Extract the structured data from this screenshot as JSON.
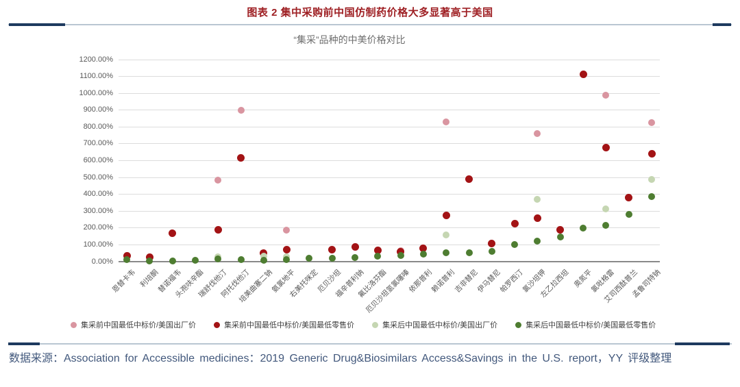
{
  "header": {
    "title": "图表 2 集中采购前中国仿制药价格大多显著高于美国"
  },
  "source": {
    "text": "数据来源：Association for Accessible medicines：2019 Generic Drug&Biosimilars Access&Savings in the U.S. report，YY 评级整理"
  },
  "chart_data": {
    "type": "scatter",
    "title": "“集采”品种的中美价格对比",
    "xlabel": "",
    "ylabel": "",
    "ylim": [
      0,
      1200
    ],
    "ytick_step": 100,
    "grid": true,
    "legend_position": "bottom",
    "ytick_labels": [
      "0.00%",
      "100.00%",
      "200.00%",
      "300.00%",
      "400.00%",
      "500.00%",
      "600.00%",
      "700.00%",
      "800.00%",
      "900.00%",
      "1000.00%",
      "1100.00%",
      "1200.00%"
    ],
    "categories": [
      "恩替卡韦",
      "利培酮",
      "替诺福韦",
      "头孢呋辛酯",
      "瑞舒伐他汀",
      "阿托伐他汀",
      "培美曲塞二钠",
      "氨氯地平",
      "右美托咪定",
      "厄贝沙坦",
      "福辛普利钠",
      "氟比洛芬酯",
      "厄贝沙坦氢氯噻嗪",
      "依那普利",
      "赖诺普利",
      "吉非替尼",
      "伊马替尼",
      "帕罗西汀",
      "氯沙坦钾",
      "左乙拉西坦",
      "奥氮平",
      "氯吡格雷",
      "艾司西酞普兰",
      "孟鲁司特钠"
    ],
    "value_unit": "percent",
    "series": [
      {
        "name": "集采前中国最低中标价/美国出厂价",
        "color": "#d995a0",
        "values": [
          null,
          null,
          null,
          null,
          484,
          897,
          null,
          187,
          null,
          null,
          null,
          null,
          65,
          null,
          829,
          null,
          null,
          null,
          762,
          null,
          null,
          990,
          null,
          824
        ]
      },
      {
        "name": "集采前中国最低中标价/美国最低零售价",
        "color": "#a31315",
        "values": [
          36,
          28,
          170,
          null,
          191,
          615,
          49,
          70,
          null,
          73,
          89,
          69,
          61,
          81,
          276,
          492,
          106,
          224,
          260,
          191,
          1114,
          679,
          381,
          642
        ]
      },
      {
        "name": "集采后中国最低中标价/美国出厂价",
        "color": "#c5d6b2",
        "values": [
          null,
          null,
          null,
          null,
          30,
          null,
          32,
          30,
          null,
          null,
          null,
          null,
          null,
          null,
          159,
          null,
          null,
          null,
          371,
          null,
          null,
          313,
          null,
          489
        ]
      },
      {
        "name": "集采后中国最低中标价/美国最低零售价",
        "color": "#4e7d31",
        "values": [
          11,
          6,
          5,
          8,
          15,
          14,
          10,
          13,
          20,
          20,
          24,
          33,
          37,
          45,
          53,
          53,
          60,
          101,
          122,
          146,
          200,
          215,
          280,
          385
        ]
      }
    ]
  }
}
